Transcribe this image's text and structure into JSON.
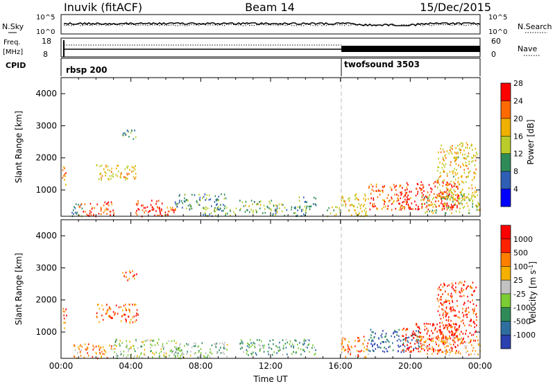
{
  "header": {
    "station": "Inuvik (fitACF)",
    "beam": "Beam 14",
    "date": "15/Dec/2015"
  },
  "status_panels": {
    "nsky": {
      "label": "N.Sky",
      "ticks": [
        "10^5",
        "10^0"
      ],
      "right_label": "N.Search",
      "right_ticks": [
        "10^5",
        "10^0"
      ]
    },
    "freq": {
      "label_1": "Freq.",
      "label_2": "[MHz]",
      "ticks": [
        "18",
        "8"
      ],
      "right_label": "Nave",
      "right_ticks": [
        "60",
        "0"
      ]
    },
    "cpid": {
      "label": "CPID",
      "segments": [
        {
          "name": "rbsp 200",
          "start_hour": 0,
          "end_hour": 16
        },
        {
          "name": "twofsound 3503",
          "start_hour": 16,
          "end_hour": 24
        }
      ]
    }
  },
  "chart_data": [
    {
      "type": "heatmap",
      "name": "power",
      "title": "",
      "ylabel": "Slant Range [km]",
      "xlabel": "",
      "x_unit": "hour UT",
      "xlim": [
        0,
        24
      ],
      "ylim": [
        180,
        4500
      ],
      "yticks": [
        1000,
        2000,
        3000,
        4000
      ],
      "colorbar": {
        "label": "Power [dB]",
        "ticks": [
          "4",
          "8",
          "12",
          "16",
          "20",
          "24",
          "28"
        ],
        "colors": [
          "#0000ff",
          "#2f5fb4",
          "#2e8b57",
          "#b9cc2a",
          "#f0b000",
          "#ff6a00",
          "#ff0000"
        ]
      },
      "regions": [
        {
          "x": [
            0.05,
            0.3
          ],
          "y": [
            1100,
            1800
          ],
          "level": 0.7
        },
        {
          "x": [
            0.6,
            1.2
          ],
          "y": [
            190,
            700
          ],
          "level": 0.35
        },
        {
          "x": [
            1.0,
            3.0
          ],
          "y": [
            200,
            650
          ],
          "level": 0.85
        },
        {
          "x": [
            2.0,
            4.4
          ],
          "y": [
            1300,
            1800
          ],
          "level": 0.6
        },
        {
          "x": [
            3.5,
            4.3
          ],
          "y": [
            2600,
            2950
          ],
          "level": 0.3
        },
        {
          "x": [
            4.2,
            5.8
          ],
          "y": [
            200,
            700
          ],
          "level": 0.9
        },
        {
          "x": [
            5.5,
            6.6
          ],
          "y": [
            200,
            560
          ],
          "level": 0.85
        },
        {
          "x": [
            6.5,
            9.5
          ],
          "y": [
            400,
            900
          ],
          "level": 0.35
        },
        {
          "x": [
            8.0,
            10.0
          ],
          "y": [
            200,
            500
          ],
          "level": 0.4
        },
        {
          "x": [
            10.2,
            12.8
          ],
          "y": [
            300,
            700
          ],
          "level": 0.45
        },
        {
          "x": [
            12.0,
            14.0
          ],
          "y": [
            200,
            500
          ],
          "level": 0.35
        },
        {
          "x": [
            13.5,
            14.6
          ],
          "y": [
            400,
            800
          ],
          "level": 0.4
        },
        {
          "x": [
            15.2,
            16.0
          ],
          "y": [
            200,
            500
          ],
          "level": 0.45
        },
        {
          "x": [
            16.0,
            17.6
          ],
          "y": [
            200,
            900
          ],
          "level": 0.6
        },
        {
          "x": [
            17.6,
            20.0
          ],
          "y": [
            400,
            1200
          ],
          "level": 0.8
        },
        {
          "x": [
            19.5,
            22.8
          ],
          "y": [
            400,
            1300
          ],
          "level": 0.95
        },
        {
          "x": [
            21.5,
            23.8
          ],
          "y": [
            700,
            2500
          ],
          "level": 0.6
        },
        {
          "x": [
            20.5,
            24.0
          ],
          "y": [
            300,
            900
          ],
          "level": 0.5
        }
      ]
    },
    {
      "type": "heatmap",
      "name": "velocity",
      "title": "",
      "ylabel": "Slant Range [km]",
      "xlabel": "Time UT",
      "x_unit": "hour UT",
      "xlim": [
        0,
        24
      ],
      "ylim": [
        180,
        4500
      ],
      "yticks": [
        1000,
        2000,
        3000,
        4000
      ],
      "xticks": [
        "00:00",
        "04:00",
        "08:00",
        "12:00",
        "16:00",
        "20:00",
        "00:00"
      ],
      "colorbar": {
        "label": "Velocity [m s^-1]",
        "ticks": [
          "1000",
          "500",
          "100",
          "25",
          "-25",
          "-100",
          "-500",
          "-1000"
        ],
        "colors": [
          "#2c3fb0",
          "#2f6fa0",
          "#2e8b57",
          "#7ccc35",
          "#c2c2c2",
          "#f5b000",
          "#ff7f00",
          "#ff2200",
          "#ff0000"
        ]
      },
      "regions": [
        {
          "x": [
            0.05,
            0.3
          ],
          "y": [
            1100,
            1800
          ],
          "level": 0.8
        },
        {
          "x": [
            0.6,
            3.0
          ],
          "y": [
            200,
            650
          ],
          "level": 0.7
        },
        {
          "x": [
            2.0,
            4.4
          ],
          "y": [
            1300,
            1900
          ],
          "level": 0.75
        },
        {
          "x": [
            3.5,
            4.3
          ],
          "y": [
            2600,
            2950
          ],
          "level": 0.75
        },
        {
          "x": [
            3.0,
            7.0
          ],
          "y": [
            200,
            800
          ],
          "level": 0.45
        },
        {
          "x": [
            6.5,
            9.5
          ],
          "y": [
            200,
            700
          ],
          "level": 0.4
        },
        {
          "x": [
            10.2,
            14.6
          ],
          "y": [
            300,
            800
          ],
          "level": 0.3
        },
        {
          "x": [
            16.0,
            17.6
          ],
          "y": [
            200,
            900
          ],
          "level": 0.7
        },
        {
          "x": [
            17.6,
            20.5
          ],
          "y": [
            400,
            1100
          ],
          "level": 0.15
        },
        {
          "x": [
            19.5,
            22.8
          ],
          "y": [
            400,
            1300
          ],
          "level": 0.9
        },
        {
          "x": [
            21.5,
            23.8
          ],
          "y": [
            700,
            2600
          ],
          "level": 0.85
        },
        {
          "x": [
            20.5,
            24.0
          ],
          "y": [
            300,
            900
          ],
          "level": 0.65
        }
      ]
    }
  ]
}
